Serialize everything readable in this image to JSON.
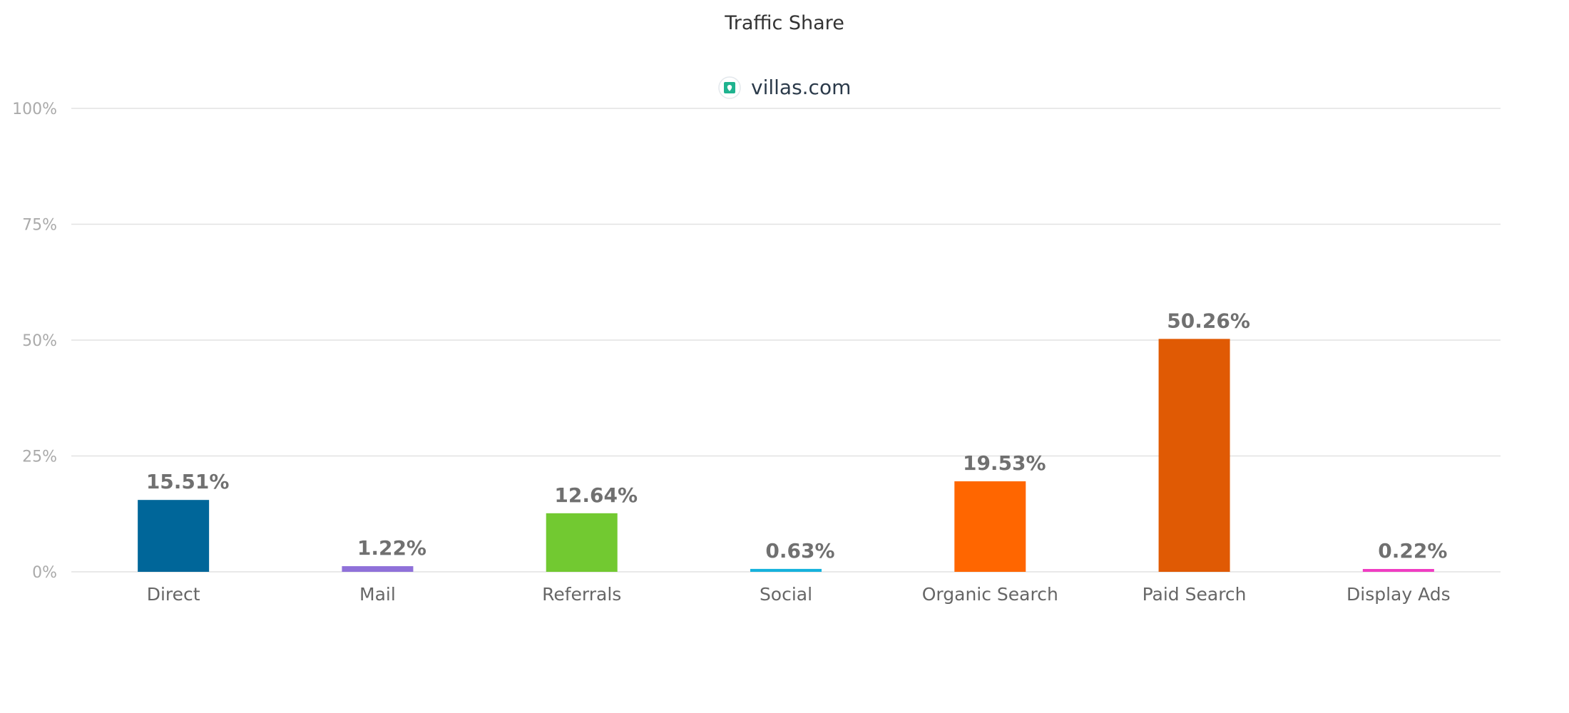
{
  "chart_data": {
    "type": "bar",
    "title": "Traffic Share",
    "legend": {
      "placement": "top-center",
      "entries": [
        {
          "name": "villas.com",
          "icon": "villas-favicon-icon",
          "icon_color": "#1fb38f"
        }
      ]
    },
    "categories": [
      "Direct",
      "Mail",
      "Referrals",
      "Social",
      "Organic Search",
      "Paid Search",
      "Display Ads"
    ],
    "values": [
      15.51,
      1.22,
      12.64,
      0.63,
      19.53,
      50.26,
      0.22
    ],
    "data_labels": [
      "15.51%",
      "1.22%",
      "12.64%",
      "0.63%",
      "19.53%",
      "50.26%",
      "0.22%"
    ],
    "colors": [
      "#006699",
      "#8f71d9",
      "#72c931",
      "#16b2dc",
      "#ff6600",
      "#e05a04",
      "#f03dc2"
    ],
    "ylim": [
      0,
      100
    ],
    "yticks": [
      0,
      25,
      50,
      75,
      100
    ],
    "ytick_labels": [
      "0%",
      "25%",
      "50%",
      "75%",
      "100%"
    ],
    "grid": true,
    "xlabel": "",
    "ylabel": ""
  }
}
